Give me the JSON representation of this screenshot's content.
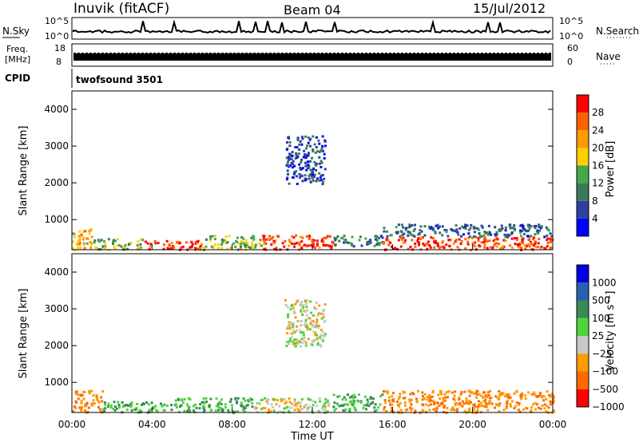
{
  "header": {
    "station": "Inuvik (fitACF)",
    "beam": "Beam 04",
    "date": "15/Jul/2012"
  },
  "aux_panels": {
    "nsky_label": "N.Sky",
    "nsky_ticks": [
      "10^5",
      "10^0"
    ],
    "nsearch_label": "N.Search",
    "nsearch_ticks": [
      "10^5",
      "10^0"
    ],
    "freq_label": "Freq.",
    "freq_unit": "[MHz]",
    "freq_ticks": [
      "18",
      "8"
    ],
    "nave_label": "Nave",
    "nave_ticks": [
      "60",
      "0"
    ],
    "cpid_label": "CPID",
    "cpid_value": "twofsound 3501"
  },
  "colors": {
    "power": [
      "#0000ff",
      "#2f3fa0",
      "#3a7a58",
      "#45a94a",
      "#ffd000",
      "#ff9a00",
      "#ff6000",
      "#ff0000"
    ],
    "velocity": [
      "#ff0000",
      "#ff6a00",
      "#ff9a00",
      "#c8c8c8",
      "#4fd43a",
      "#3a8a56",
      "#2a5fb0",
      "#0000e0"
    ]
  },
  "chart_data": [
    {
      "type": "heatmap",
      "panel": "power",
      "ylabel": "Slant Range [km]",
      "ylim": [
        180,
        4500
      ],
      "yticks": [
        "1000",
        "2000",
        "3000",
        "4000"
      ],
      "ytick_values": [
        1000,
        2000,
        3000,
        4000
      ],
      "xlim": [
        0,
        24
      ],
      "colorbar_label": "Power [dB]",
      "colorbar_ticks": [
        "4",
        "8",
        "12",
        "16",
        "20",
        "24",
        "28"
      ],
      "colorbar_range": [
        0,
        32
      ],
      "approx_echo_regions": [
        {
          "t": [
            0.0,
            1.0
          ],
          "range": [
            200,
            800
          ],
          "power_db": 20
        },
        {
          "t": [
            1.0,
            3.5
          ],
          "range": [
            200,
            500
          ],
          "power_db": 14
        },
        {
          "t": [
            3.5,
            6.5
          ],
          "range": [
            200,
            450
          ],
          "power_db": 28
        },
        {
          "t": [
            6.5,
            9.5
          ],
          "range": [
            200,
            600
          ],
          "power_db": 16
        },
        {
          "t": [
            9.5,
            13.0
          ],
          "range": [
            200,
            600
          ],
          "power_db": 28
        },
        {
          "t": [
            13.0,
            15.5
          ],
          "range": [
            300,
            600
          ],
          "power_db": 10
        },
        {
          "t": [
            15.5,
            24.0
          ],
          "range": [
            200,
            550
          ],
          "power_db": 28
        },
        {
          "t": [
            15.5,
            24.0
          ],
          "range": [
            550,
            900
          ],
          "power_db": 8
        },
        {
          "t": [
            10.6,
            12.6
          ],
          "range": [
            2000,
            3300
          ],
          "power_db": 6
        }
      ]
    },
    {
      "type": "heatmap",
      "panel": "velocity",
      "ylabel": "Slant Range [km]",
      "xlabel": "Time UT",
      "ylim": [
        180,
        4500
      ],
      "yticks": [
        "1000",
        "2000",
        "3000",
        "4000"
      ],
      "ytick_values": [
        1000,
        2000,
        3000,
        4000
      ],
      "xlim": [
        0,
        24
      ],
      "xticks": [
        "00:00",
        "04:00",
        "08:00",
        "12:00",
        "16:00",
        "20:00",
        "00:00"
      ],
      "colorbar_label": "Velocity [m s⁻¹]",
      "colorbar_ticks": [
        "1000",
        "500",
        "100",
        "25",
        "−25",
        "−100",
        "−500",
        "−1000"
      ],
      "approx_echo_regions": [
        {
          "t": [
            0.0,
            1.5
          ],
          "range": [
            200,
            800
          ],
          "velocity": -100
        },
        {
          "t": [
            1.5,
            5.0
          ],
          "range": [
            200,
            500
          ],
          "velocity": 100
        },
        {
          "t": [
            5.0,
            9.0
          ],
          "range": [
            200,
            600
          ],
          "velocity": 100
        },
        {
          "t": [
            9.0,
            13.0
          ],
          "range": [
            200,
            600
          ],
          "velocity": 0
        },
        {
          "t": [
            13.0,
            15.5
          ],
          "range": [
            250,
            700
          ],
          "velocity": 100
        },
        {
          "t": [
            15.5,
            24.0
          ],
          "range": [
            200,
            800
          ],
          "velocity": -100
        },
        {
          "t": [
            10.6,
            12.6
          ],
          "range": [
            2000,
            3300
          ],
          "velocity": 0
        }
      ]
    }
  ]
}
